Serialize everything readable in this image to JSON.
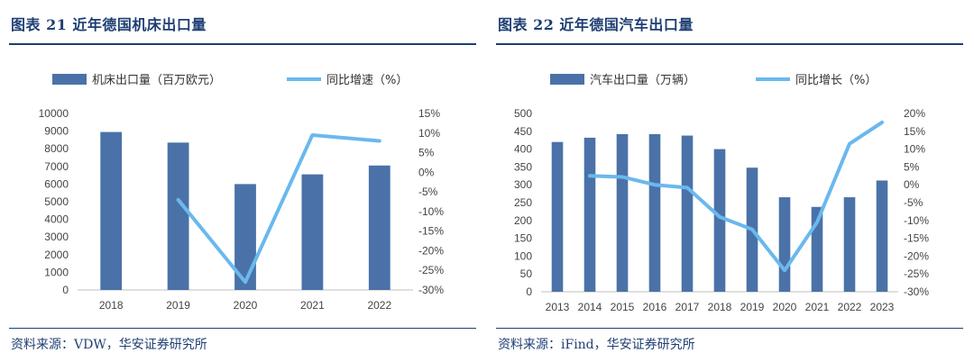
{
  "left": {
    "title": "图表 21 近年德国机床出口量",
    "source": "资料来源：VDW，华安证券研究所",
    "chart_data": {
      "type": "bar",
      "categories": [
        "2018",
        "2019",
        "2020",
        "2021",
        "2022"
      ],
      "series": [
        {
          "name": "机床出口量（百万欧元）",
          "kind": "bar",
          "axis": "left",
          "values": [
            8950,
            8350,
            6000,
            6550,
            7050
          ]
        },
        {
          "name": "同比增速（%）",
          "kind": "line",
          "axis": "right",
          "values": [
            null,
            -7,
            -28,
            9.5,
            8
          ]
        }
      ],
      "ylim_left": [
        0,
        10000
      ],
      "ylim_right": [
        -30,
        15
      ],
      "yticks_left": [
        "10000",
        "9000",
        "8000",
        "7000",
        "6000",
        "5000",
        "4000",
        "3000",
        "2000",
        "1000",
        "0"
      ],
      "yticks_right": [
        "15%",
        "10%",
        "5%",
        "0%",
        "-5%",
        "-10%",
        "-15%",
        "-20%",
        "-25%",
        "-30%"
      ],
      "colors": {
        "bar": "#4a72a8",
        "line": "#6ab8ee"
      },
      "legend_position": "top"
    }
  },
  "right": {
    "title": "图表 22 近年德国汽车出口量",
    "source": "资料来源：iFind，华安证券研究所",
    "chart_data": {
      "type": "bar",
      "categories": [
        "2013",
        "2014",
        "2015",
        "2016",
        "2017",
        "2018",
        "2019",
        "2020",
        "2021",
        "2022",
        "2023"
      ],
      "series": [
        {
          "name": "汽车出口量（万辆）",
          "kind": "bar",
          "axis": "left",
          "values": [
            420,
            432,
            442,
            442,
            438,
            400,
            348,
            265,
            238,
            265,
            312
          ]
        },
        {
          "name": "同比增长（%）",
          "kind": "line",
          "axis": "right",
          "values": [
            null,
            2.5,
            2.2,
            0,
            -0.8,
            -9,
            -12.5,
            -24,
            -10.5,
            11.5,
            17.5
          ]
        }
      ],
      "ylim_left": [
        0,
        500
      ],
      "ylim_right": [
        -30,
        20
      ],
      "yticks_left": [
        "500",
        "450",
        "400",
        "350",
        "300",
        "250",
        "200",
        "150",
        "100",
        "50",
        "0"
      ],
      "yticks_right": [
        "20%",
        "15%",
        "10%",
        "5%",
        "0%",
        "-5%",
        "-10%",
        "-15%",
        "-20%",
        "-25%",
        "-30%"
      ],
      "colors": {
        "bar": "#4a72a8",
        "line": "#6ab8ee"
      },
      "legend_position": "top"
    }
  }
}
